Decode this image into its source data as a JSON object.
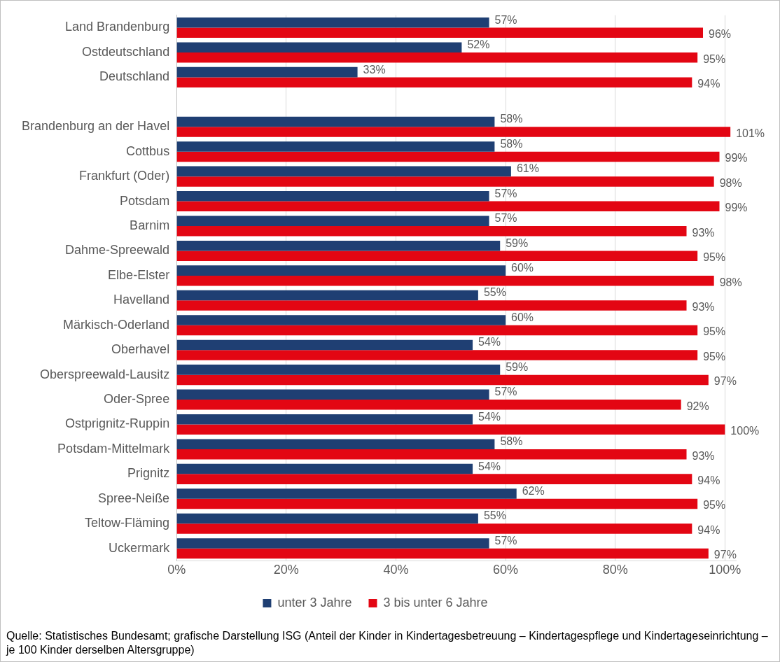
{
  "chart_data": {
    "type": "bar",
    "orientation": "horizontal",
    "categories": [
      "Land Brandenburg",
      "Ostdeutschland",
      "Deutschland",
      null,
      "Brandenburg an der Havel",
      "Cottbus",
      "Frankfurt (Oder)",
      "Potsdam",
      "Barnim",
      "Dahme-Spreewald",
      "Elbe-Elster",
      "Havelland",
      "Märkisch-Oderland",
      "Oberhavel",
      "Oberspreewald-Lausitz",
      "Oder-Spree",
      "Ostprignitz-Ruppin",
      "Potsdam-Mittelmark",
      "Prignitz",
      "Spree-Neiße",
      "Teltow-Fläming",
      "Uckermark"
    ],
    "series": [
      {
        "name": "unter 3 Jahre",
        "color": "#1f3f73",
        "values": [
          57,
          52,
          33,
          null,
          58,
          58,
          61,
          57,
          57,
          59,
          60,
          55,
          60,
          54,
          59,
          57,
          54,
          58,
          54,
          62,
          55,
          57
        ],
        "value_labels": [
          "57%",
          "52%",
          "33%",
          null,
          "58%",
          "58%",
          "61%",
          "57%",
          "57%",
          "59%",
          "60%",
          "55%",
          "60%",
          "54%",
          "59%",
          "57%",
          "54%",
          "58%",
          "54%",
          "62%",
          "55%",
          "57%"
        ]
      },
      {
        "name": "3 bis unter 6 Jahre",
        "color": "#e30613",
        "values": [
          96,
          95,
          94,
          null,
          101,
          99,
          98,
          99,
          93,
          95,
          98,
          93,
          95,
          95,
          97,
          92,
          100,
          93,
          94,
          95,
          94,
          97
        ],
        "value_labels": [
          "96%",
          "95%",
          "94%",
          null,
          "101%",
          "99%",
          "98%",
          "99%",
          "93%",
          "95%",
          "98%",
          "93%",
          "95%",
          "95%",
          "97%",
          "92%",
          "100%",
          "93%",
          "94%",
          "95%",
          "94%",
          "97%"
        ]
      }
    ],
    "xlim": [
      0,
      102
    ],
    "xticks": [
      {
        "value": 0,
        "label": "0%"
      },
      {
        "value": 20,
        "label": "20%"
      },
      {
        "value": 40,
        "label": "40%"
      },
      {
        "value": 60,
        "label": "60%"
      },
      {
        "value": 80,
        "label": "80%"
      },
      {
        "value": 100,
        "label": "100%"
      }
    ],
    "grid": "x",
    "legend": "bottom",
    "annotations": [
      "Quelle: Statistisches Bundesamt; grafische Darstellung ISG (Anteil der Kinder in Kindertagesbetreuung – Kindertagespflege und Kindertageseinrichtung – je 100 Kinder derselben Altersgruppe)"
    ]
  }
}
